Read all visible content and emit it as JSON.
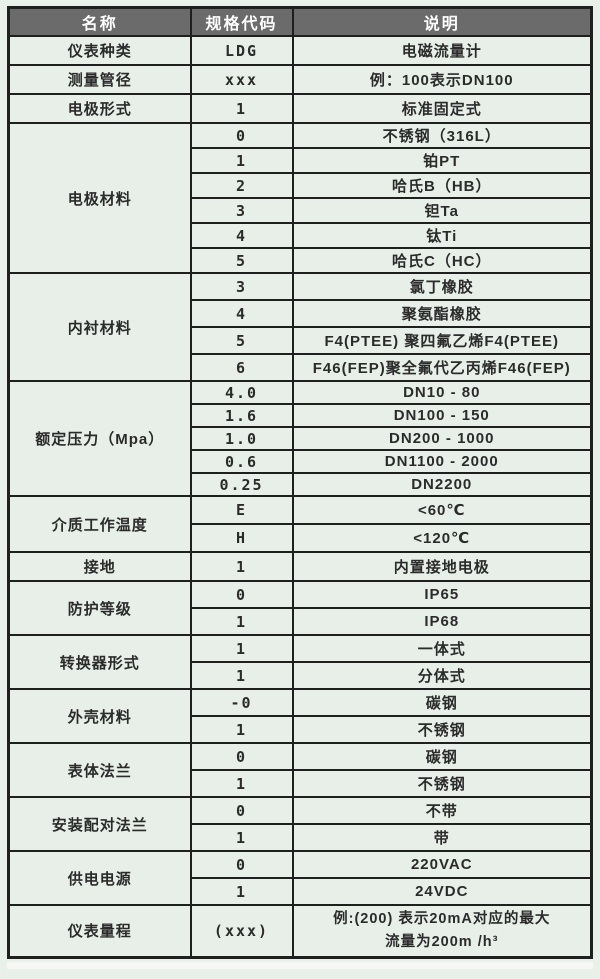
{
  "table": {
    "headers": [
      "名称",
      "规格代码",
      "说明"
    ],
    "groups": [
      {
        "name": "仪表种类",
        "rows": [
          {
            "code": "LDG",
            "desc": "电磁流量计"
          }
        ]
      },
      {
        "name": "测量管径",
        "rows": [
          {
            "code": "xxx",
            "desc": "例：100表示DN100"
          }
        ]
      },
      {
        "name": "电极形式",
        "rows": [
          {
            "code": "1",
            "desc": "标准固定式"
          }
        ]
      },
      {
        "name": "电极材料",
        "rows": [
          {
            "code": "0",
            "desc": "不锈钢（316L）"
          },
          {
            "code": "1",
            "desc": "铂PT"
          },
          {
            "code": "2",
            "desc": "哈氏B（HB）"
          },
          {
            "code": "3",
            "desc": "钽Ta"
          },
          {
            "code": "4",
            "desc": "钛Ti"
          },
          {
            "code": "5",
            "desc": "哈氏C（HC）"
          }
        ]
      },
      {
        "name": "内衬材料",
        "rows": [
          {
            "code": "3",
            "desc": "氯丁橡胶"
          },
          {
            "code": "4",
            "desc": "聚氨酯橡胶"
          },
          {
            "code": "5",
            "desc": "F4(PTEE) 聚四氟乙烯F4(PTEE)"
          },
          {
            "code": "6",
            "desc": "F46(FEP)聚全氟代乙丙烯F46(FEP)"
          }
        ]
      },
      {
        "name": "额定压力（Mpa）",
        "rows": [
          {
            "code": "4.0",
            "desc": "DN10 - 80"
          },
          {
            "code": "1.6",
            "desc": "DN100 - 150"
          },
          {
            "code": "1.0",
            "desc": "DN200 - 1000"
          },
          {
            "code": "0.6",
            "desc": "DN1100 - 2000"
          },
          {
            "code": "0.25",
            "desc": "DN2200"
          }
        ]
      },
      {
        "name": "介质工作温度",
        "rows": [
          {
            "code": "E",
            "desc": "<60℃"
          },
          {
            "code": "H",
            "desc": "<120℃"
          }
        ]
      },
      {
        "name": "接地",
        "rows": [
          {
            "code": "1",
            "desc": "内置接地电极"
          }
        ]
      },
      {
        "name": "防护等级",
        "rows": [
          {
            "code": "0",
            "desc": "IP65"
          },
          {
            "code": "1",
            "desc": "IP68"
          }
        ]
      },
      {
        "name": "转换器形式",
        "rows": [
          {
            "code": "1",
            "desc": "一体式"
          },
          {
            "code": "1",
            "desc": "分体式"
          }
        ]
      },
      {
        "name": "外壳材料",
        "rows": [
          {
            "code": "-0",
            "desc": "碳钢"
          },
          {
            "code": "1",
            "desc": "不锈钢"
          }
        ]
      },
      {
        "name": "表体法兰",
        "rows": [
          {
            "code": "0",
            "desc": "碳钢"
          },
          {
            "code": "1",
            "desc": "不锈钢"
          }
        ]
      },
      {
        "name": "安装配对法兰",
        "rows": [
          {
            "code": "0",
            "desc": "不带"
          },
          {
            "code": "1",
            "desc": "带"
          }
        ]
      },
      {
        "name": "供电电源",
        "rows": [
          {
            "code": "0",
            "desc": "220VAC"
          },
          {
            "code": "1",
            "desc": "24VDC"
          }
        ]
      },
      {
        "name": "仪表量程",
        "rows": [
          {
            "code": "(xxx)",
            "desc": "例:(200) 表示20mA对应的最大\n流量为200m /h³"
          }
        ]
      }
    ],
    "colors": {
      "header_bg": "#6b6b6b",
      "header_text": "#ffffff",
      "body_bg": "#e8efe9",
      "border": "#1f1f1f"
    }
  }
}
